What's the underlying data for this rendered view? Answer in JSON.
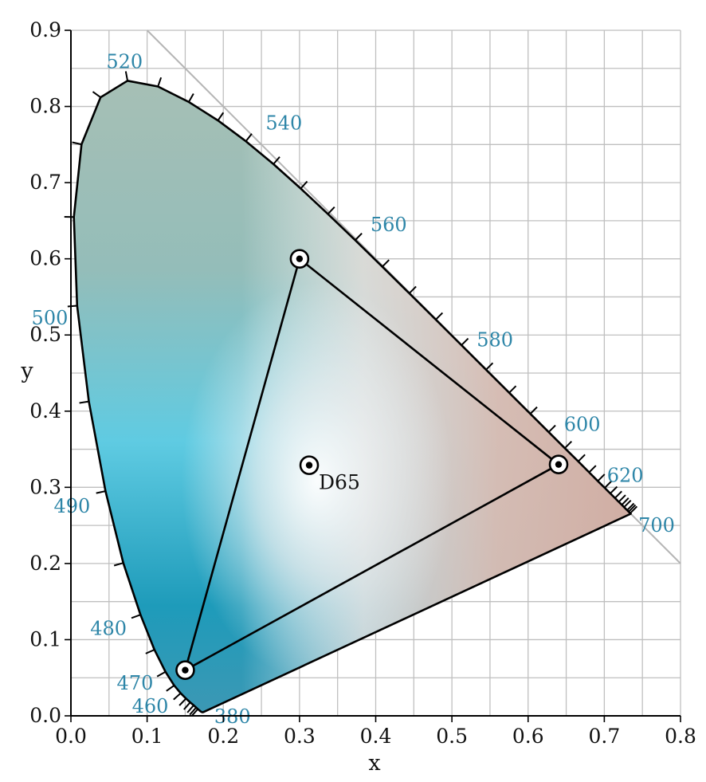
{
  "chart_data": {
    "type": "scatter",
    "title": "",
    "xlabel": "x",
    "ylabel": "y",
    "xlim": [
      0.0,
      0.8
    ],
    "ylim": [
      0.0,
      0.9
    ],
    "grid": true,
    "x_ticks": [
      "0.0",
      "0.1",
      "0.2",
      "0.3",
      "0.4",
      "0.5",
      "0.6",
      "0.7",
      "0.8"
    ],
    "y_ticks": [
      "0.0",
      "0.1",
      "0.2",
      "0.3",
      "0.4",
      "0.5",
      "0.6",
      "0.7",
      "0.8",
      "0.9"
    ],
    "colors": {
      "wavelength_label": "#2e86a8",
      "locus": "#000000",
      "grid": "#bfbfbf",
      "cyan": "#63cbe0",
      "deep_blue": "#1b9ab8",
      "green_gray": "#a9bfb4",
      "salmon": "#d2ada3",
      "white": "#f6f2f0"
    },
    "spectral_locus": [
      [
        0.1741,
        0.005
      ],
      [
        0.174,
        0.005
      ],
      [
        0.1738,
        0.0049
      ],
      [
        0.1736,
        0.0049
      ],
      [
        0.1733,
        0.0048
      ],
      [
        0.173,
        0.0048
      ],
      [
        0.1726,
        0.0048
      ],
      [
        0.1721,
        0.0048
      ],
      [
        0.1714,
        0.0051
      ],
      [
        0.1703,
        0.0058
      ],
      [
        0.1689,
        0.0069
      ],
      [
        0.1669,
        0.0086
      ],
      [
        0.1644,
        0.0109
      ],
      [
        0.1611,
        0.0138
      ],
      [
        0.1566,
        0.0177
      ],
      [
        0.151,
        0.0227
      ],
      [
        0.144,
        0.0297
      ],
      [
        0.1355,
        0.0399
      ],
      [
        0.1241,
        0.0578
      ],
      [
        0.1096,
        0.0868
      ],
      [
        0.0913,
        0.1327
      ],
      [
        0.0687,
        0.2007
      ],
      [
        0.0454,
        0.295
      ],
      [
        0.0235,
        0.4127
      ],
      [
        0.0082,
        0.5384
      ],
      [
        0.0039,
        0.6548
      ],
      [
        0.0139,
        0.7502
      ],
      [
        0.0389,
        0.812
      ],
      [
        0.0743,
        0.8338
      ],
      [
        0.1142,
        0.8262
      ],
      [
        0.1547,
        0.8059
      ],
      [
        0.1929,
        0.7816
      ],
      [
        0.2296,
        0.7543
      ],
      [
        0.2658,
        0.7243
      ],
      [
        0.3016,
        0.6923
      ],
      [
        0.3373,
        0.6589
      ],
      [
        0.3731,
        0.6245
      ],
      [
        0.4087,
        0.5896
      ],
      [
        0.4441,
        0.5547
      ],
      [
        0.4788,
        0.5202
      ],
      [
        0.5125,
        0.4866
      ],
      [
        0.5448,
        0.4544
      ],
      [
        0.5752,
        0.4242
      ],
      [
        0.6029,
        0.3965
      ],
      [
        0.627,
        0.3725
      ],
      [
        0.6482,
        0.3514
      ],
      [
        0.6658,
        0.334
      ],
      [
        0.6801,
        0.3197
      ],
      [
        0.6915,
        0.3083
      ],
      [
        0.7006,
        0.2993
      ],
      [
        0.7079,
        0.292
      ],
      [
        0.714,
        0.2859
      ],
      [
        0.719,
        0.2809
      ],
      [
        0.723,
        0.277
      ],
      [
        0.726,
        0.274
      ],
      [
        0.7283,
        0.2717
      ],
      [
        0.73,
        0.27
      ],
      [
        0.7311,
        0.2689
      ],
      [
        0.732,
        0.268
      ],
      [
        0.7327,
        0.2673
      ],
      [
        0.7334,
        0.2666
      ],
      [
        0.734,
        0.266
      ],
      [
        0.7344,
        0.2656
      ],
      [
        0.7346,
        0.2654
      ],
      [
        0.7347,
        0.2653
      ]
    ],
    "reference_line": [
      [
        0.1,
        0.9
      ],
      [
        0.8,
        0.2
      ]
    ],
    "wavelength_ticks": [
      [
        0.1666,
        0.0089
      ],
      [
        0.1644,
        0.0109
      ],
      [
        0.1611,
        0.0138
      ],
      [
        0.1566,
        0.0177
      ],
      [
        0.151,
        0.0227
      ],
      [
        0.144,
        0.0297
      ],
      [
        0.1355,
        0.0399
      ],
      [
        0.1241,
        0.0578
      ],
      [
        0.1096,
        0.0868
      ],
      [
        0.0913,
        0.1327
      ],
      [
        0.0687,
        0.2007
      ],
      [
        0.0454,
        0.295
      ],
      [
        0.0235,
        0.4127
      ],
      [
        0.0082,
        0.5384
      ],
      [
        0.0039,
        0.6548
      ],
      [
        0.0139,
        0.7502
      ],
      [
        0.0389,
        0.812
      ],
      [
        0.0743,
        0.8338
      ],
      [
        0.1142,
        0.8262
      ],
      [
        0.1547,
        0.8059
      ],
      [
        0.1929,
        0.7816
      ],
      [
        0.2296,
        0.7543
      ],
      [
        0.2658,
        0.7243
      ],
      [
        0.3016,
        0.6923
      ],
      [
        0.3373,
        0.6589
      ],
      [
        0.3731,
        0.6245
      ],
      [
        0.4087,
        0.5896
      ],
      [
        0.4441,
        0.5547
      ],
      [
        0.4788,
        0.5202
      ],
      [
        0.5125,
        0.4866
      ],
      [
        0.5448,
        0.4544
      ],
      [
        0.5752,
        0.4242
      ],
      [
        0.6029,
        0.3965
      ],
      [
        0.627,
        0.3725
      ],
      [
        0.6482,
        0.3514
      ],
      [
        0.6658,
        0.334
      ],
      [
        0.6801,
        0.3197
      ],
      [
        0.6915,
        0.3083
      ],
      [
        0.7006,
        0.2993
      ],
      [
        0.7079,
        0.292
      ],
      [
        0.714,
        0.2859
      ],
      [
        0.719,
        0.2809
      ],
      [
        0.723,
        0.277
      ],
      [
        0.726,
        0.274
      ],
      [
        0.73,
        0.27
      ],
      [
        0.732,
        0.268
      ],
      [
        0.734,
        0.266
      ]
    ],
    "wavelength_labels": [
      {
        "text": "380",
        "x": 0.1741,
        "y": 0.005,
        "dx": 0.014,
        "dy": -0.006,
        "anchor": "start"
      },
      {
        "text": "460",
        "x": 0.144,
        "y": 0.0297,
        "dx": -0.016,
        "dy": -0.017,
        "anchor": "end"
      },
      {
        "text": "470",
        "x": 0.1241,
        "y": 0.0578,
        "dx": -0.016,
        "dy": -0.015,
        "anchor": "end"
      },
      {
        "text": "480",
        "x": 0.0913,
        "y": 0.1327,
        "dx": -0.018,
        "dy": -0.018,
        "anchor": "end"
      },
      {
        "text": "490",
        "x": 0.0454,
        "y": 0.295,
        "dx": -0.02,
        "dy": -0.02,
        "anchor": "end"
      },
      {
        "text": "500",
        "x": 0.0082,
        "y": 0.5384,
        "dx": -0.012,
        "dy": -0.016,
        "anchor": "end"
      },
      {
        "text": "520",
        "x": 0.0743,
        "y": 0.8338,
        "dx": -0.004,
        "dy": 0.025,
        "anchor": "middle"
      },
      {
        "text": "540",
        "x": 0.2296,
        "y": 0.7543,
        "dx": 0.026,
        "dy": 0.024,
        "anchor": "start"
      },
      {
        "text": "560",
        "x": 0.3731,
        "y": 0.6245,
        "dx": 0.02,
        "dy": 0.02,
        "anchor": "start"
      },
      {
        "text": "580",
        "x": 0.5125,
        "y": 0.4866,
        "dx": 0.02,
        "dy": 0.007,
        "anchor": "start"
      },
      {
        "text": "600",
        "x": 0.627,
        "y": 0.3725,
        "dx": 0.02,
        "dy": 0.01,
        "anchor": "start"
      },
      {
        "text": "620",
        "x": 0.6915,
        "y": 0.3083,
        "dx": 0.012,
        "dy": 0.007,
        "anchor": "start"
      },
      {
        "text": "700",
        "x": 0.7347,
        "y": 0.2653,
        "dx": 0.01,
        "dy": -0.015,
        "anchor": "start"
      }
    ],
    "gamut_triangle": [
      [
        0.64,
        0.33
      ],
      [
        0.3,
        0.6
      ],
      [
        0.15,
        0.06
      ]
    ],
    "white_point": {
      "name": "D65",
      "x": 0.3127,
      "y": 0.329
    }
  }
}
